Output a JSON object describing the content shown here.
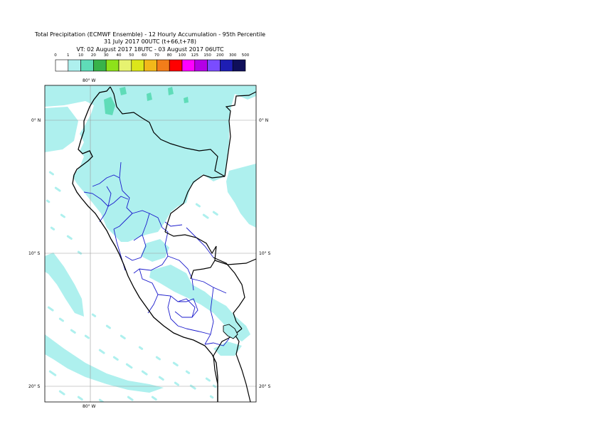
{
  "title": {
    "line1": "Total Precipitation (ECMWF Ensemble) - 12 Hourly Accumulation - 95th Percentile",
    "line2": "31 July 2017 00UTC (t+66,t+78)",
    "line3": "VT: 02 August 2017 18UTC - 03 August 2017 06UTC"
  },
  "legend": {
    "thresholds": [
      "0",
      "1",
      "10",
      "20",
      "30",
      "40",
      "50",
      "60",
      "70",
      "80",
      "100",
      "125",
      "150",
      "200",
      "300",
      "500"
    ],
    "colors": [
      "#ffffff",
      "#aef0ee",
      "#5fdcb8",
      "#38b34a",
      "#8ee21a",
      "#e6f270",
      "#dce61a",
      "#f2b81a",
      "#f27d1a",
      "#ff0000",
      "#ff00ff",
      "#b400e6",
      "#7a4cff",
      "#1e1eb4",
      "#0f0f5a"
    ]
  },
  "map": {
    "water_color": "#ffffff",
    "precip_color": "#aef0ee",
    "light_green": "#5fdcb8",
    "border_color": "#000000",
    "region_color": "#1a1acc",
    "labels": {
      "lon_top": "80° W",
      "lon_bottom": "80° W",
      "lat_0_left": "0° N",
      "lat_0_right": "0° N",
      "lat_10_left": "10° S",
      "lat_10_right": "10° S",
      "lat_20_left": "20° S",
      "lat_20_right": "20° S"
    }
  }
}
